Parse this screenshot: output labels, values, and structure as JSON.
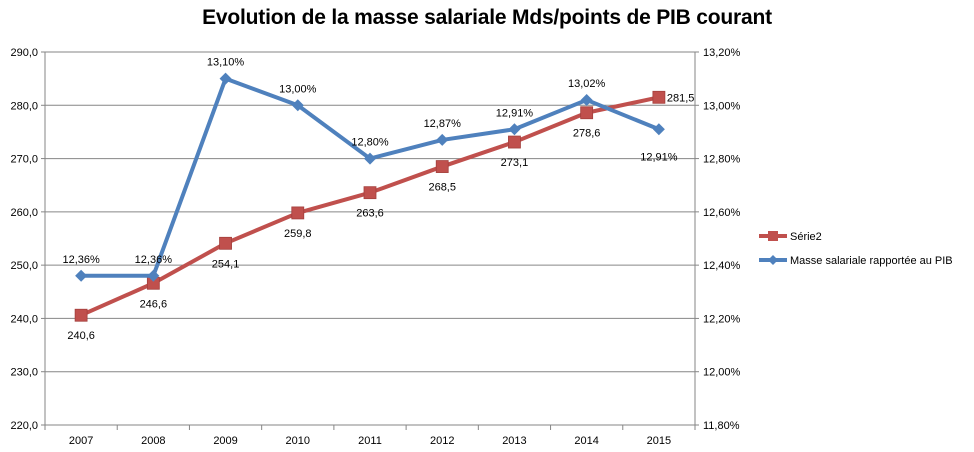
{
  "chart_data": {
    "type": "line",
    "title": "Evolution de la masse salariale Mds/points de PIB courant",
    "categories": [
      "2007",
      "2008",
      "2009",
      "2010",
      "2011",
      "2012",
      "2013",
      "2014",
      "2015"
    ],
    "y_left": {
      "ylim": [
        220,
        290
      ],
      "ticks": [
        "220,0",
        "230,0",
        "240,0",
        "250,0",
        "260,0",
        "270,0",
        "280,0",
        "290,0"
      ]
    },
    "y_right": {
      "ylim": [
        11.8,
        13.2
      ],
      "ticks": [
        "11,80%",
        "12,00%",
        "12,20%",
        "12,40%",
        "12,60%",
        "12,80%",
        "13,00%",
        "13,20%"
      ]
    },
    "grid": true,
    "legend_position": "right",
    "series": [
      {
        "name": "Série2",
        "axis": "left",
        "color": "#c0504d",
        "marker": "square",
        "values": [
          240.6,
          246.6,
          254.1,
          259.8,
          263.6,
          268.5,
          273.1,
          278.6,
          281.5
        ],
        "labels": [
          "240,6",
          "246,6",
          "254,1",
          "259,8",
          "263,6",
          "268,5",
          "273,1",
          "278,6",
          "281,5"
        ]
      },
      {
        "name": "Masse salariale rapportée au PIB",
        "axis": "right",
        "color": "#4f81bd",
        "marker": "diamond",
        "values": [
          12.36,
          12.36,
          13.1,
          13.0,
          12.8,
          12.87,
          12.91,
          13.02,
          12.91
        ],
        "labels": [
          "12,36%",
          "12,36%",
          "13,10%",
          "13,00%",
          "12,80%",
          "12,87%",
          "12,91%",
          "13,02%",
          "12,91%"
        ]
      }
    ]
  }
}
